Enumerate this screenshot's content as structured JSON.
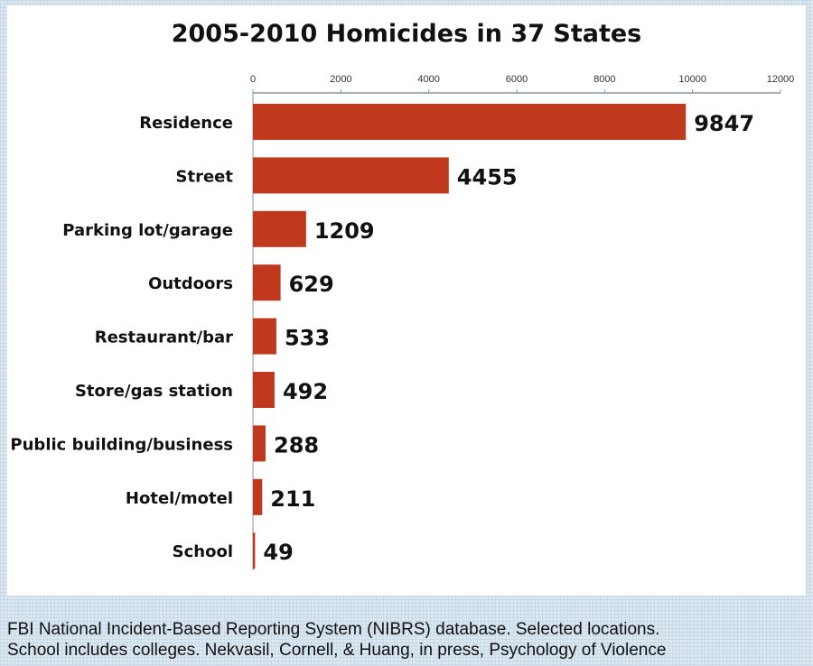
{
  "chart_data": {
    "type": "bar",
    "orientation": "horizontal",
    "title": "2005-2010 Homicides in 37 States",
    "categories": [
      "Residence",
      "Street",
      "Parking lot/garage",
      "Outdoors",
      "Restaurant/bar",
      "Store/gas station",
      "Public building/business",
      "Hotel/motel",
      "School"
    ],
    "values": [
      9847,
      4455,
      1209,
      629,
      533,
      492,
      288,
      211,
      49
    ],
    "xlim": [
      0,
      12000
    ],
    "xticks": [
      0,
      2000,
      4000,
      6000,
      8000,
      10000,
      12000
    ],
    "xaxis_position": "top",
    "bar_color": "#c0391f",
    "grid": false,
    "xlabel": "",
    "ylabel": ""
  },
  "footnote": {
    "line1": "FBI National Incident-Based Reporting System (NIBRS) database. Selected locations.",
    "line2": "School includes colleges. Nekvasil, Cornell, & Huang, in press, Psychology of Violence"
  }
}
